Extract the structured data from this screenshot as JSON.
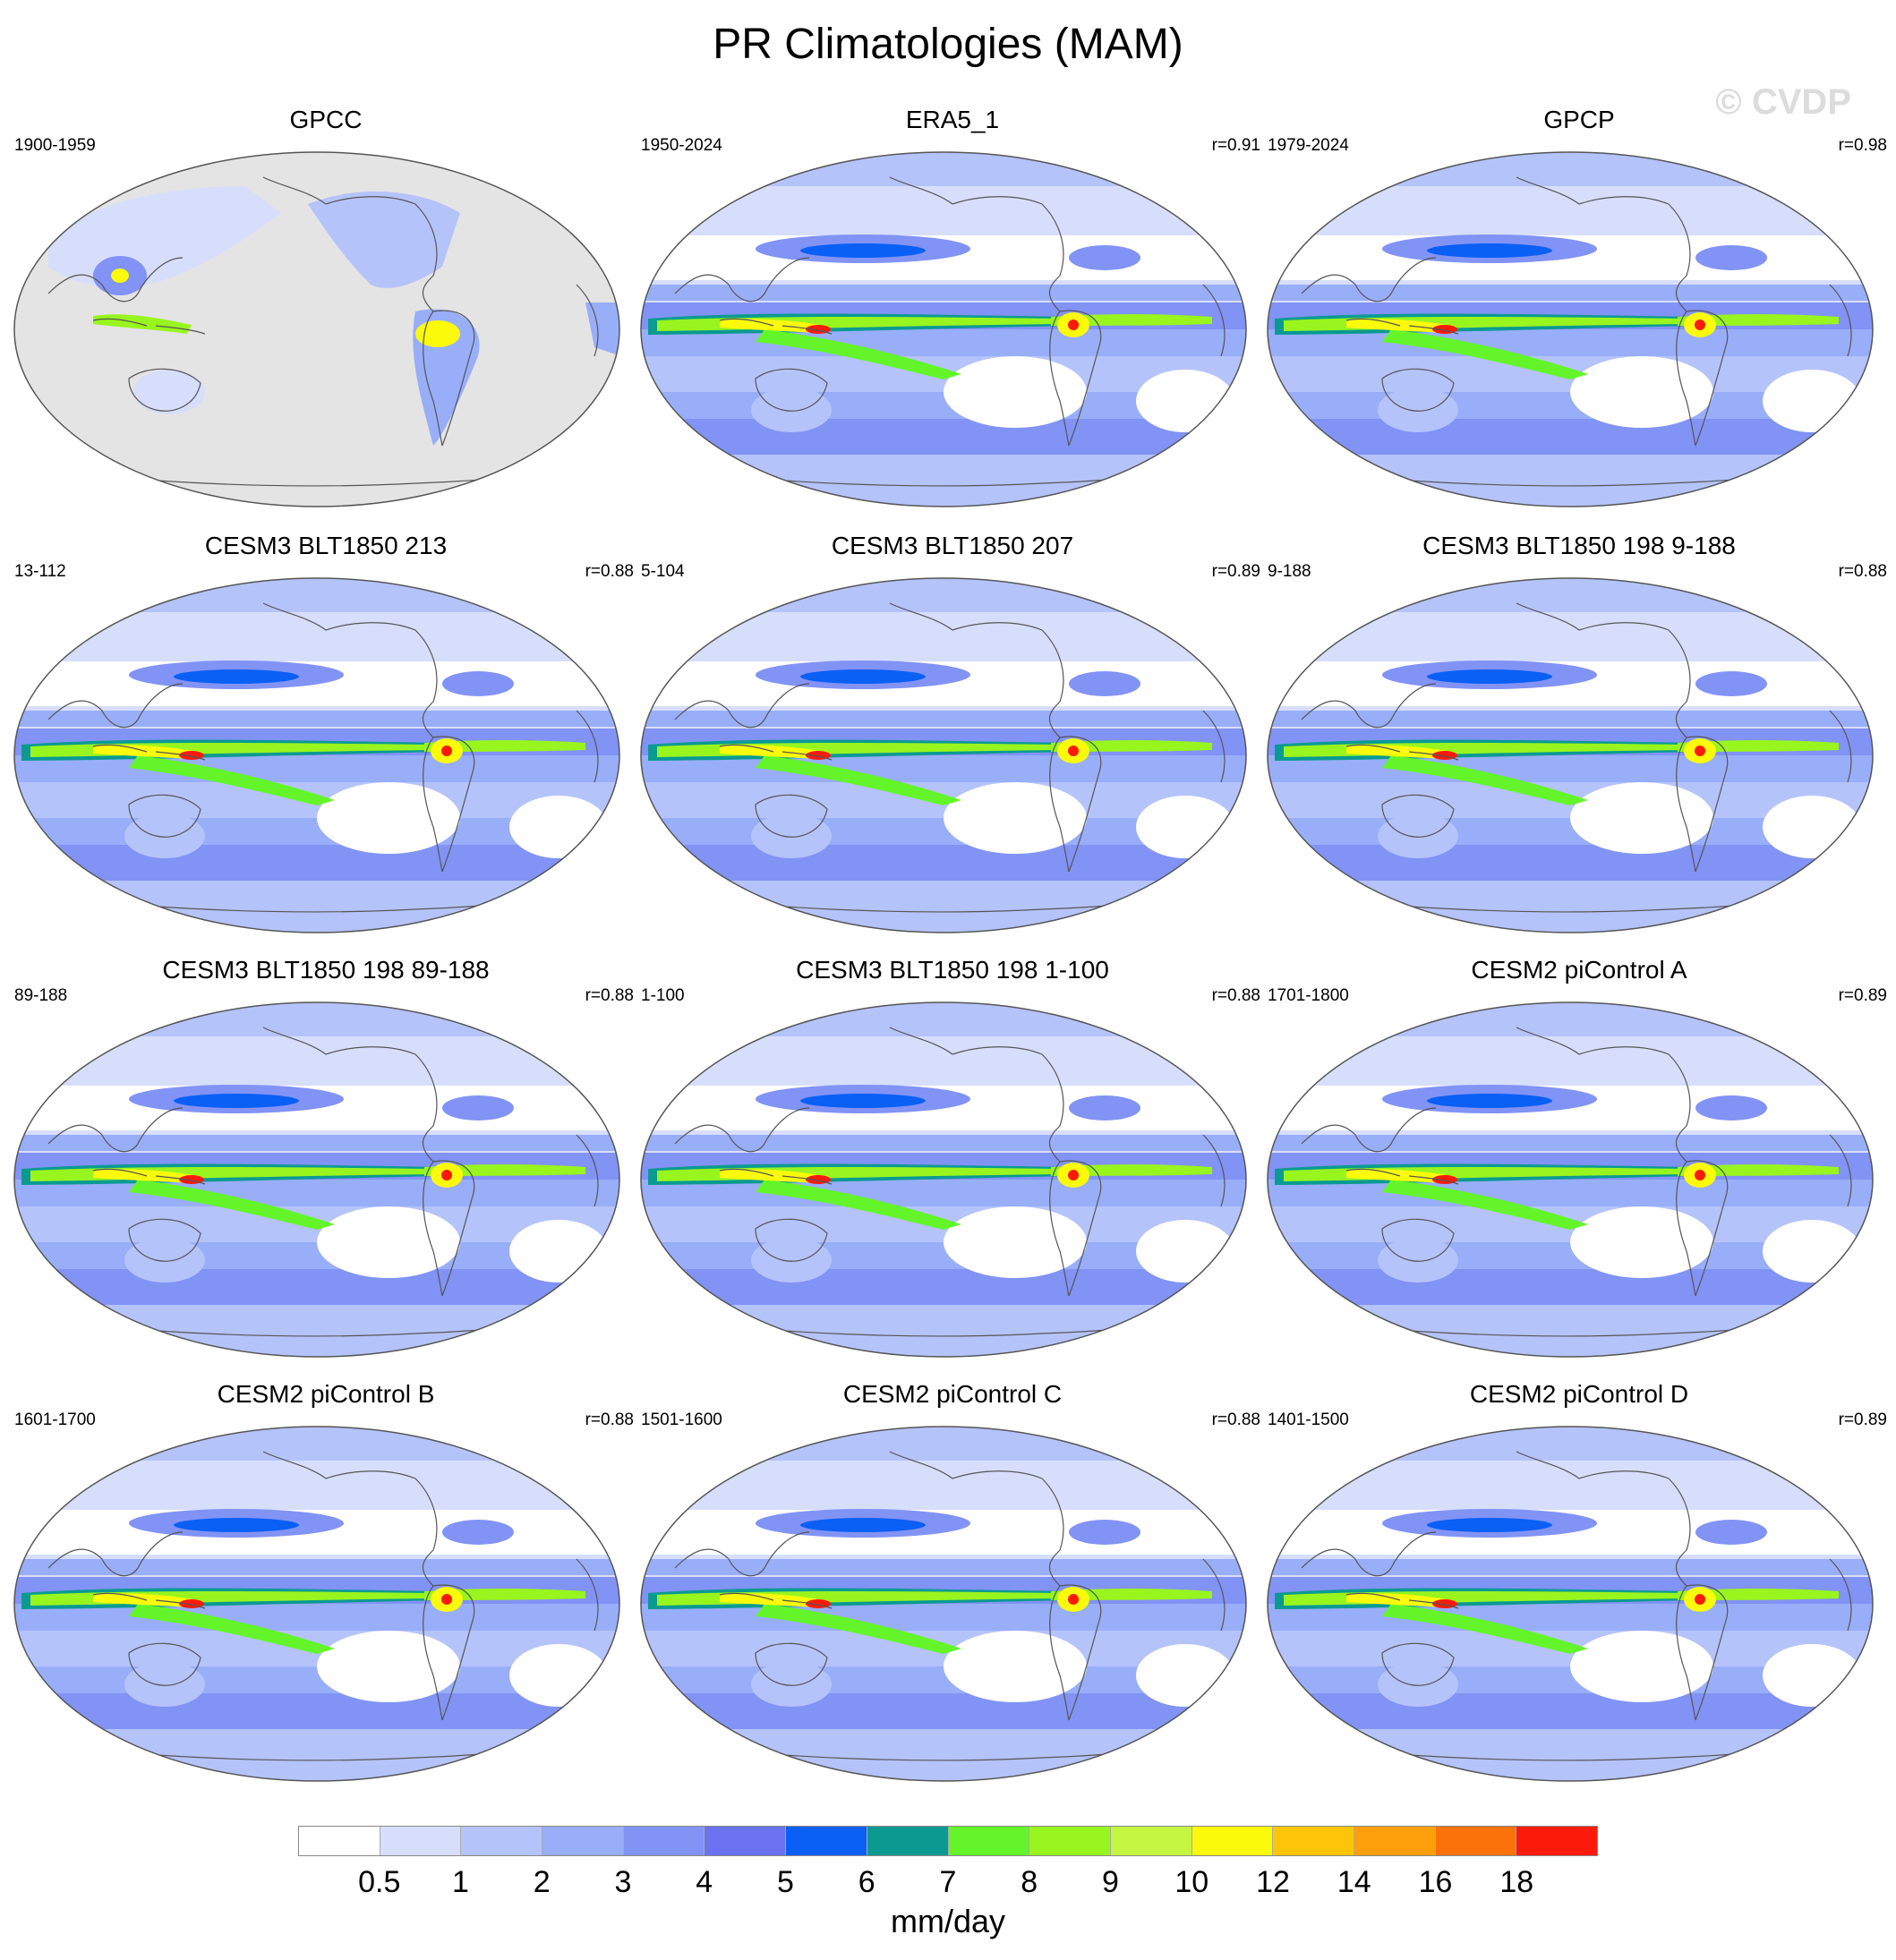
{
  "title": "PR Climatologies (MAM)",
  "watermark": "© CVDP",
  "panels": [
    {
      "title": "GPCC",
      "period": "1900-1959",
      "r": "",
      "land_only": true
    },
    {
      "title": "ERA5_1",
      "period": "1950-2024",
      "r": "r=0.91",
      "land_only": false
    },
    {
      "title": "GPCP",
      "period": "1979-2024",
      "r": "r=0.98",
      "land_only": false
    },
    {
      "title": "CESM3 BLT1850 213",
      "period": "13-112",
      "r": "r=0.88",
      "land_only": false
    },
    {
      "title": "CESM3 BLT1850 207",
      "period": "5-104",
      "r": "r=0.89",
      "land_only": false
    },
    {
      "title": "CESM3 BLT1850 198 9-188",
      "period": "9-188",
      "r": "r=0.88",
      "land_only": false
    },
    {
      "title": "CESM3 BLT1850 198 89-188",
      "period": "89-188",
      "r": "r=0.88",
      "land_only": false
    },
    {
      "title": "CESM3 BLT1850 198 1-100",
      "period": "1-100",
      "r": "r=0.88",
      "land_only": false
    },
    {
      "title": "CESM2 piControl A",
      "period": "1701-1800",
      "r": "r=0.89",
      "land_only": false
    },
    {
      "title": "CESM2 piControl B",
      "period": "1601-1700",
      "r": "r=0.88",
      "land_only": false
    },
    {
      "title": "CESM2 piControl C",
      "period": "1501-1600",
      "r": "r=0.88",
      "land_only": false
    },
    {
      "title": "CESM2 piControl D",
      "period": "1401-1500",
      "r": "r=0.89",
      "land_only": false
    }
  ],
  "colorbar": {
    "colors": [
      "#ffffff",
      "#d7defb",
      "#b5c3fb",
      "#98aef9",
      "#8193f5",
      "#6a72f0",
      "#0a5ff5",
      "#0a9a92",
      "#63f52a",
      "#98f51e",
      "#c4f540",
      "#fafa0a",
      "#fcc50a",
      "#fc9f0a",
      "#fc720a",
      "#fc1a0a"
    ],
    "ticks": [
      "0.5",
      "1",
      "2",
      "3",
      "4",
      "5",
      "6",
      "7",
      "8",
      "9",
      "10",
      "12",
      "14",
      "16",
      "18"
    ],
    "units": "mm/day"
  }
}
